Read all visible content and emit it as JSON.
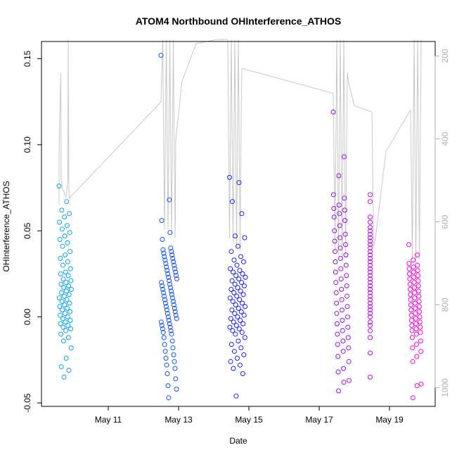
{
  "chart_data": {
    "type": "scatter",
    "title": "ATOM4 Northbound OHInterference_ATHOS",
    "xlabel": "Date",
    "ylabel": "OHInterference_ATHOS",
    "x_ticks": [
      {
        "day": 11,
        "label": "May 11"
      },
      {
        "day": 13,
        "label": "May 13"
      },
      {
        "day": 15,
        "label": "May 15"
      },
      {
        "day": 17,
        "label": "May 17"
      },
      {
        "day": 19,
        "label": "May 19"
      }
    ],
    "xlim": [
      9.1,
      20.3
    ],
    "ylim": [
      -0.052,
      0.16
    ],
    "y_ticks": [
      -0.05,
      0.0,
      0.05,
      0.1,
      0.15
    ],
    "y_tick_labels": [
      "-0.05",
      "0.00",
      "0.05",
      "0.10",
      "0.15"
    ],
    "right_axis": {
      "ticks": [
        200,
        400,
        600,
        800,
        1000
      ],
      "labels": [
        "200",
        "400",
        "600",
        "800",
        "1000"
      ],
      "range_top_to_bottom": [
        165,
        1045
      ],
      "line_color": "#c8c8c8"
    },
    "point_color_gradient": [
      "#00a8f0",
      "#1a1aff",
      "#ff00dd"
    ],
    "series": [
      {
        "segment": "May 9-10",
        "x_range": [
          9.6,
          9.95
        ],
        "y_points": [
          0.076,
          0.067,
          0.062,
          0.06,
          0.058,
          0.055,
          0.053,
          0.051,
          0.049,
          0.047,
          0.045,
          0.043,
          0.041,
          0.038,
          0.036,
          0.034,
          0.032,
          0.03,
          0.028,
          0.026,
          0.025,
          0.024,
          0.022,
          0.021,
          0.02,
          0.019,
          0.018,
          0.017,
          0.016,
          0.015,
          0.014,
          0.013,
          0.012,
          0.011,
          0.01,
          0.009,
          0.008,
          0.007,
          0.006,
          0.005,
          0.004,
          0.003,
          0.002,
          0.001,
          0.0,
          -0.001,
          -0.002,
          -0.003,
          -0.004,
          -0.005,
          -0.006,
          -0.007,
          -0.008,
          -0.01,
          -0.012,
          -0.014,
          -0.018,
          -0.024,
          -0.029,
          -0.031,
          -0.035
        ]
      },
      {
        "segment": "May 12-13",
        "x_range": [
          12.5,
          12.95
        ],
        "y_points": [
          0.152,
          0.068,
          0.056,
          0.049,
          0.045,
          0.04,
          0.039,
          0.038,
          0.037,
          0.036,
          0.035,
          0.034,
          0.033,
          0.032,
          0.031,
          0.03,
          0.029,
          0.028,
          0.027,
          0.026,
          0.025,
          0.024,
          0.023,
          0.022,
          0.021,
          0.02,
          0.019,
          0.018,
          0.017,
          0.016,
          0.015,
          0.014,
          0.013,
          0.012,
          0.011,
          0.01,
          0.009,
          0.008,
          0.007,
          0.006,
          0.005,
          0.004,
          0.003,
          0.002,
          0.001,
          0.0,
          -0.001,
          -0.002,
          -0.003,
          -0.004,
          -0.005,
          -0.006,
          -0.007,
          -0.008,
          -0.009,
          -0.01,
          -0.012,
          -0.014,
          -0.016,
          -0.018,
          -0.02,
          -0.022,
          -0.024,
          -0.026,
          -0.028,
          -0.03,
          -0.033,
          -0.036,
          -0.04,
          -0.042,
          -0.047
        ]
      },
      {
        "segment": "May 14-15",
        "x_range": [
          14.45,
          14.9
        ],
        "y_points": [
          0.081,
          0.078,
          0.067,
          0.06,
          0.047,
          0.046,
          0.041,
          0.038,
          0.035,
          0.033,
          0.032,
          0.03,
          0.028,
          0.027,
          0.026,
          0.025,
          0.024,
          0.023,
          0.022,
          0.021,
          0.02,
          0.019,
          0.018,
          0.017,
          0.016,
          0.015,
          0.014,
          0.013,
          0.012,
          0.011,
          0.01,
          0.009,
          0.008,
          0.007,
          0.006,
          0.005,
          0.004,
          0.003,
          0.002,
          0.001,
          0.0,
          -0.001,
          -0.002,
          -0.003,
          -0.004,
          -0.005,
          -0.006,
          -0.007,
          -0.008,
          -0.009,
          -0.01,
          -0.012,
          -0.014,
          -0.016,
          -0.018,
          -0.02,
          -0.022,
          -0.024,
          -0.026,
          -0.028,
          -0.03,
          -0.033,
          -0.046
        ]
      },
      {
        "segment": "May 17-18",
        "x_range": [
          17.4,
          17.85
        ],
        "y_points": [
          0.119,
          0.093,
          0.082,
          0.071,
          0.069,
          0.065,
          0.063,
          0.062,
          0.06,
          0.058,
          0.056,
          0.053,
          0.05,
          0.048,
          0.046,
          0.044,
          0.042,
          0.04,
          0.038,
          0.036,
          0.034,
          0.032,
          0.03,
          0.028,
          0.026,
          0.024,
          0.022,
          0.02,
          0.018,
          0.016,
          0.014,
          0.012,
          0.01,
          0.008,
          0.006,
          0.004,
          0.002,
          0.0,
          -0.002,
          -0.004,
          -0.006,
          -0.008,
          -0.01,
          -0.012,
          -0.014,
          -0.016,
          -0.018,
          -0.02,
          -0.023,
          -0.026,
          -0.03,
          -0.032,
          -0.037,
          -0.038,
          -0.043
        ]
      },
      {
        "segment": "May 18-19",
        "x_range": [
          18.45,
          18.6
        ],
        "y_points": [
          0.071,
          0.067,
          0.058,
          0.055,
          0.052,
          0.05,
          0.048,
          0.046,
          0.044,
          0.042,
          0.04,
          0.038,
          0.036,
          0.034,
          0.032,
          0.03,
          0.028,
          0.026,
          0.024,
          0.022,
          0.02,
          0.018,
          0.016,
          0.014,
          0.012,
          0.01,
          0.008,
          0.006,
          0.004,
          0.002,
          0.0,
          -0.003,
          -0.005,
          -0.008,
          -0.012,
          -0.021,
          -0.035
        ]
      },
      {
        "segment": "May 19-20",
        "x_range": [
          19.55,
          19.9
        ],
        "y_points": [
          0.042,
          0.036,
          0.033,
          0.031,
          0.03,
          0.029,
          0.028,
          0.027,
          0.026,
          0.025,
          0.024,
          0.023,
          0.022,
          0.021,
          0.02,
          0.019,
          0.018,
          0.017,
          0.016,
          0.015,
          0.014,
          0.013,
          0.012,
          0.011,
          0.01,
          0.009,
          0.008,
          0.007,
          0.006,
          0.005,
          0.004,
          0.003,
          0.002,
          0.001,
          0.0,
          -0.001,
          -0.002,
          -0.003,
          -0.004,
          -0.005,
          -0.006,
          -0.007,
          -0.008,
          -0.009,
          -0.01,
          -0.012,
          -0.014,
          -0.016,
          -0.018,
          -0.02,
          -0.023,
          -0.026,
          -0.039,
          -0.04,
          -0.047
        ]
      }
    ],
    "altitude_trace": [
      [
        9.6,
        560
      ],
      [
        9.6,
        445
      ],
      [
        9.62,
        350
      ],
      [
        9.65,
        240
      ],
      [
        9.66,
        500
      ],
      [
        9.7,
        520
      ],
      [
        9.8,
        540
      ],
      [
        9.85,
        500
      ],
      [
        9.86,
        160
      ],
      [
        9.88,
        520
      ],
      [
        9.9,
        545
      ],
      [
        9.92,
        540
      ],
      [
        12.4,
        320
      ],
      [
        12.5,
        310
      ],
      [
        12.55,
        160
      ],
      [
        12.6,
        620
      ],
      [
        12.65,
        160
      ],
      [
        12.7,
        620
      ],
      [
        12.75,
        160
      ],
      [
        12.8,
        630
      ],
      [
        12.85,
        160
      ],
      [
        12.9,
        640
      ],
      [
        12.92,
        400
      ],
      [
        13.1,
        260
      ],
      [
        13.5,
        170
      ],
      [
        14.1,
        160
      ],
      [
        14.4,
        160
      ],
      [
        14.45,
        640
      ],
      [
        14.5,
        160
      ],
      [
        14.55,
        650
      ],
      [
        14.6,
        160
      ],
      [
        14.65,
        660
      ],
      [
        14.7,
        160
      ],
      [
        14.75,
        670
      ],
      [
        14.78,
        350
      ],
      [
        14.8,
        230
      ],
      [
        17.4,
        290
      ],
      [
        17.45,
        670
      ],
      [
        17.5,
        160
      ],
      [
        17.55,
        680
      ],
      [
        17.6,
        160
      ],
      [
        17.65,
        690
      ],
      [
        17.7,
        160
      ],
      [
        17.75,
        680
      ],
      [
        17.8,
        240
      ],
      [
        17.85,
        270
      ],
      [
        18.0,
        320
      ],
      [
        18.5,
        335
      ],
      [
        18.55,
        660
      ],
      [
        18.6,
        640
      ],
      [
        18.9,
        430
      ],
      [
        19.6,
        330
      ],
      [
        19.65,
        690
      ],
      [
        19.7,
        160
      ],
      [
        19.75,
        700
      ],
      [
        19.8,
        160
      ],
      [
        19.85,
        690
      ],
      [
        19.9,
        160
      ]
    ]
  }
}
